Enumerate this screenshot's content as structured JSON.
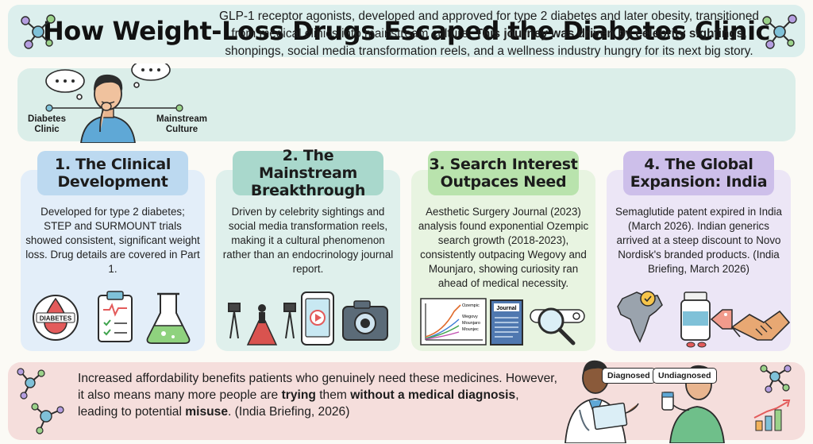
{
  "header": {
    "title": "How Weight-Loss Drugs Escaped the Diabetes Clinic"
  },
  "intro": {
    "text_part1": "GLP-1 receptor agonists, developed and approved for type 2 diabetes and later obesity, transitioned from medical clinics into mainstream culture. ",
    "text_bold": "This journey was driven by celebrity sightings,",
    "text_part2": " shonpings, social media transformation reels, and a wellness industry hungry for its next big story.",
    "label_left": "Diabetes Clinic",
    "label_right": "Mainstream Culture"
  },
  "cards": [
    {
      "title": "1. The Clinical Development",
      "body": "Developed for type 2 diabetes; STEP and SURMOUNT trials showed consistent, significant weight loss. Drug details are covered in Part 1.",
      "icon_label": "DIABETES"
    },
    {
      "title": "2. The Mainstream Breakthrough",
      "body": "Driven by celebrity sightings and social media transformation reels, making it a cultural phenomenon rather than an endocrinology journal report."
    },
    {
      "title": "3. Search Interest Outpaces Need",
      "body": "Aesthetic Surgery Journal (2023) analysis found exponential Ozempic search growth (2018-2023), consistently outpacing Wegovy and Mounjaro, showing curiosity ran ahead of medical necessity.",
      "chart_labels": [
        "Ozempic",
        "Wegovy",
        "Mounjaro",
        "Mounjec"
      ],
      "journal_label": "Journal"
    },
    {
      "title": "4. The Global Expansion: India",
      "body": "Semaglutide patent expired in India (March 2026). Indian generics arrived at a steep discount to Novo Nordisk's branded products. (India Briefing, March 2026)"
    }
  ],
  "bottom": {
    "text_a": "Increased affordability benefits patients who genuinely need these medicines. However, it also means many more people are ",
    "bold1": "trying",
    "text_b": " them ",
    "bold2": "without a medical diagnosis",
    "text_c": ", leading to potential ",
    "bold3": "misuse",
    "text_d": ". (India Briefing, 2026)",
    "bubble_left": "Diagnosed",
    "bubble_right": "Undiagnosed"
  },
  "colors": {
    "header_bg": "#dcefed",
    "card1_bg": "#e3eef9",
    "card1_title": "#bcd9f0",
    "card2_bg": "#dff0ec",
    "card2_title": "#a9d8cc",
    "card3_bg": "#e8f4e1",
    "card3_title": "#b9e3ad",
    "card4_bg": "#ece6f6",
    "card4_title": "#cdbfea",
    "bottom_bg": "#f5dedc"
  }
}
